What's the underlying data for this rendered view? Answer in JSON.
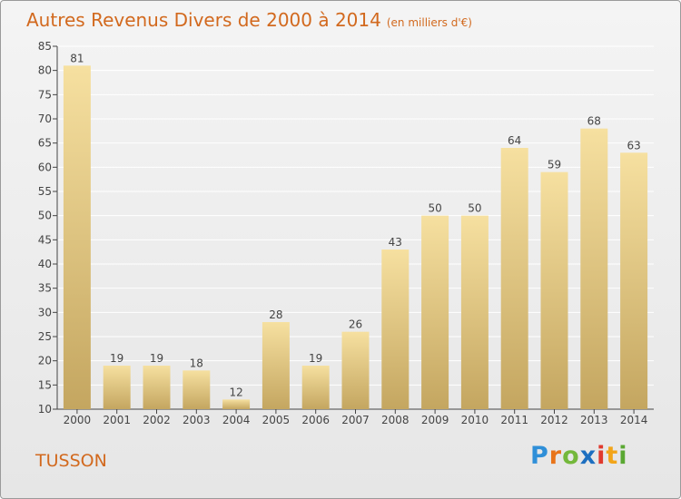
{
  "title": "Autres Revenus Divers de 2000 à 2014",
  "subtitle": "(en milliers d'€)",
  "commune": "TUSSON",
  "logo": {
    "letters": [
      "P",
      "r",
      "o",
      "x",
      "i",
      "t",
      "i"
    ],
    "colors": [
      "#2f8fd8",
      "#e8741a",
      "#74b83b",
      "#1d6fc0",
      "#e03a2e",
      "#f2a51a",
      "#5aa832"
    ]
  },
  "colors": {
    "title": "#d2691e",
    "bar_light": "#f6e0a0",
    "bar_dark": "#c4a660",
    "axis": "#444444",
    "grid": "#ffffff"
  },
  "chart_data": {
    "type": "bar",
    "categories": [
      "2000",
      "2001",
      "2002",
      "2003",
      "2004",
      "2005",
      "2006",
      "2007",
      "2008",
      "2009",
      "2010",
      "2011",
      "2012",
      "2013",
      "2014"
    ],
    "values": [
      81,
      19,
      19,
      18,
      12,
      28,
      19,
      26,
      43,
      50,
      50,
      64,
      59,
      68,
      63
    ],
    "ylim": [
      10,
      85
    ],
    "yticks": [
      10,
      15,
      20,
      25,
      30,
      35,
      40,
      45,
      50,
      55,
      60,
      65,
      70,
      75,
      80,
      85
    ],
    "grid": true,
    "xlabel": "",
    "ylabel": ""
  }
}
